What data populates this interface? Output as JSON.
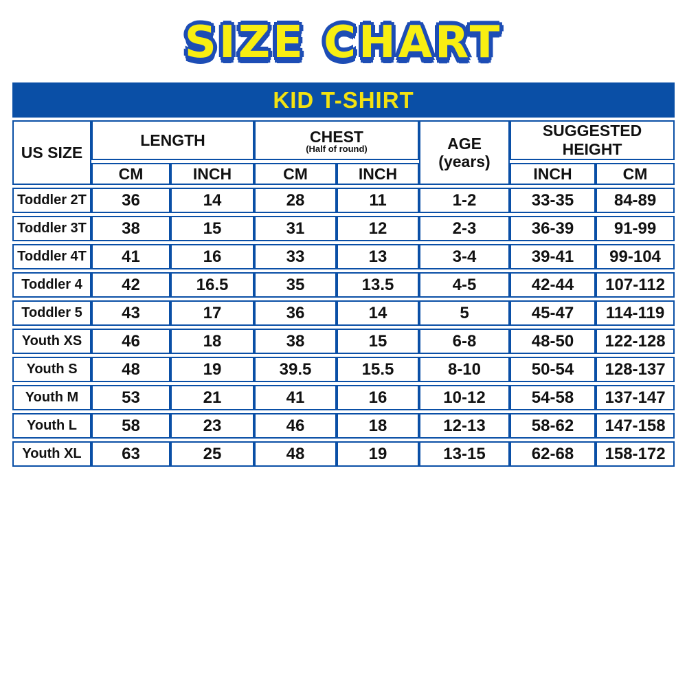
{
  "colors": {
    "table_blue": "#0a4fa6",
    "title_outline_blue": "#1d4db5",
    "title_yellow": "#f8ee12",
    "band_yellow": "#f3e211",
    "text_black": "#111111"
  },
  "chart_data": {
    "type": "table",
    "title": "SIZE CHART",
    "subtitle": "KID T-SHIRT",
    "header": {
      "us_size": "US SIZE",
      "length": "LENGTH",
      "chest": "CHEST",
      "chest_note": "(Half of round)",
      "age": "AGE",
      "age_unit": "(years)",
      "suggested_height": "SUGGESTED HEIGHT",
      "sub": [
        "CM",
        "INCH",
        "CM",
        "INCH",
        "INCH",
        "CM"
      ]
    },
    "columns": [
      "US SIZE",
      "LENGTH CM",
      "LENGTH INCH",
      "CHEST (Half of round) CM",
      "CHEST (Half of round) INCH",
      "AGE (years)",
      "SUGGESTED HEIGHT INCH",
      "SUGGESTED HEIGHT CM"
    ],
    "rows": [
      [
        "Toddler 2T",
        "36",
        "14",
        "28",
        "11",
        "1-2",
        "33-35",
        "84-89"
      ],
      [
        "Toddler 3T",
        "38",
        "15",
        "31",
        "12",
        "2-3",
        "36-39",
        "91-99"
      ],
      [
        "Toddler 4T",
        "41",
        "16",
        "33",
        "13",
        "3-4",
        "39-41",
        "99-104"
      ],
      [
        "Toddler 4",
        "42",
        "16.5",
        "35",
        "13.5",
        "4-5",
        "42-44",
        "107-112"
      ],
      [
        "Toddler 5",
        "43",
        "17",
        "36",
        "14",
        "5",
        "45-47",
        "114-119"
      ],
      [
        "Youth XS",
        "46",
        "18",
        "38",
        "15",
        "6-8",
        "48-50",
        "122-128"
      ],
      [
        "Youth S",
        "48",
        "19",
        "39.5",
        "15.5",
        "8-10",
        "50-54",
        "128-137"
      ],
      [
        "Youth M",
        "53",
        "21",
        "41",
        "16",
        "10-12",
        "54-58",
        "137-147"
      ],
      [
        "Youth L",
        "58",
        "23",
        "46",
        "18",
        "12-13",
        "58-62",
        "147-158"
      ],
      [
        "Youth XL",
        "63",
        "25",
        "48",
        "19",
        "13-15",
        "62-68",
        "158-172"
      ]
    ]
  }
}
